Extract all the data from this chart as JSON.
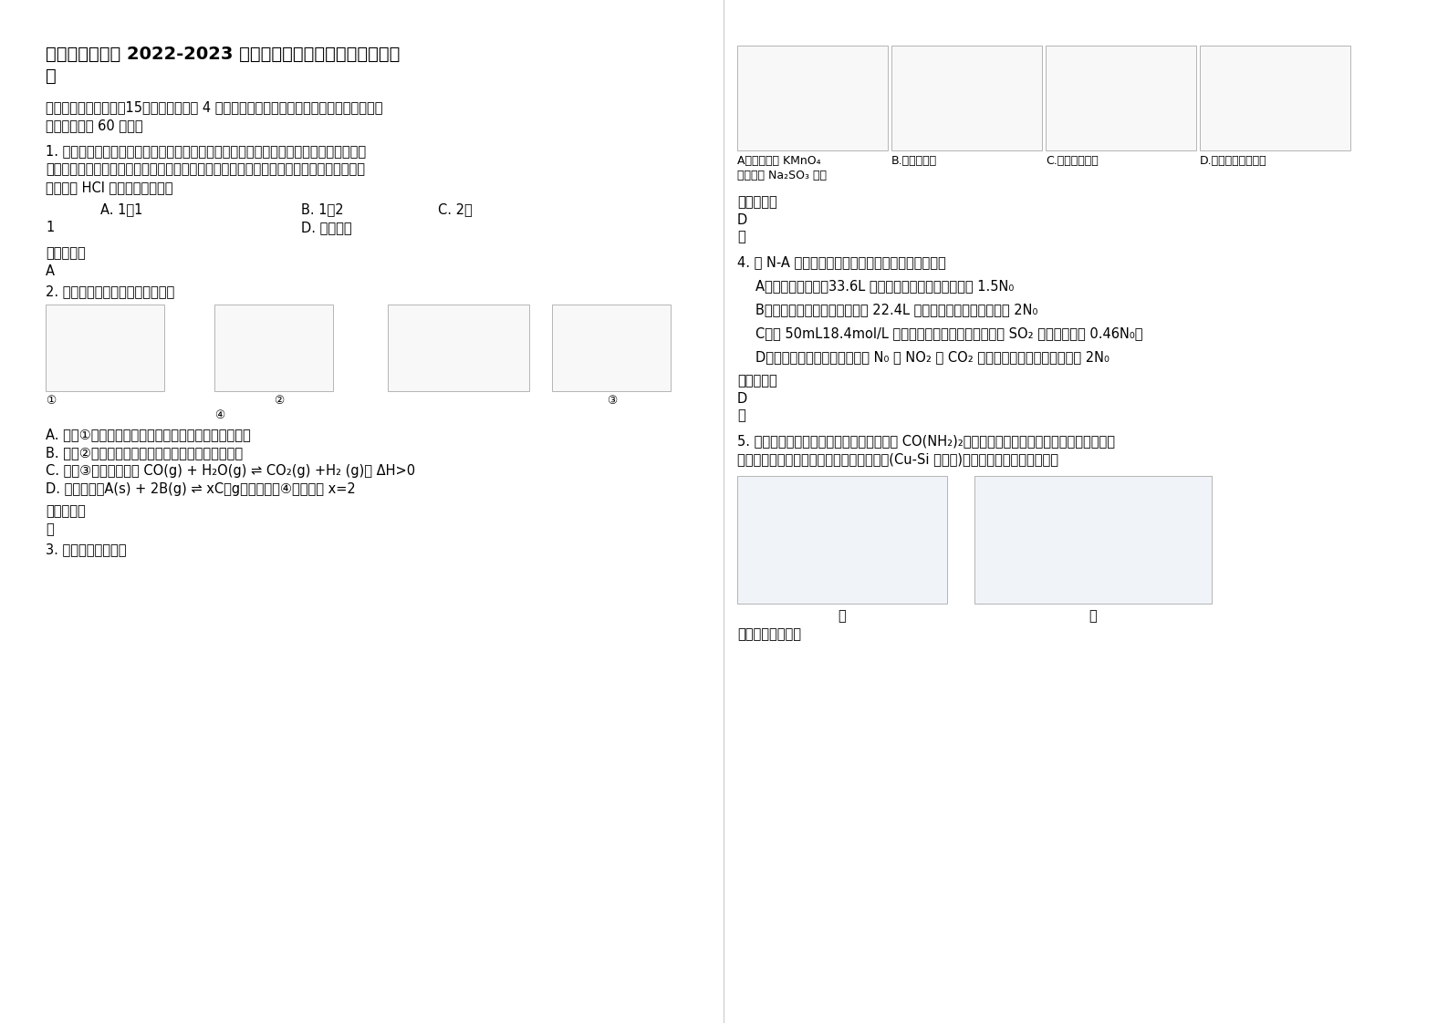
{
  "bg_color": "#ffffff",
  "title_line1": "重庆开县开中学 2022-2023 学年高三化学上学期期末试卷含解",
  "title_line2": "析",
  "section_header_line1": "一、单选题（本大题內15个小题，每小题 4 分。在每小题给出的四个选项中，只有一项符合",
  "section_header_line2": "题目要求，八 60 分。）",
  "q1_line1": "1. 在甲乙两个坑崛中分别盛等质量的碳酸氢钓；将甲充分加热，之后冷却至室温；乙不加",
  "q1_line2": "热。分别向甲、乙两坑崛中加入足量的相同物质的量浓度的盐酸，反应后甲、乙两坑崛中实",
  "q1_line3": "际消耗的 HCl 的物质的量之比为",
  "q1_optA": "A. 1：1",
  "q1_optB": "B. 1：2",
  "q1_optC": "C. 2：",
  "q1_optC2": "1",
  "q1_optD": "D. 无法确定",
  "ans_label": "参考答案：",
  "q1_ans": "A",
  "q2_text": "2. 关于下列图示的说法中正确的是",
  "q2_num1": "①",
  "q2_num2": "②",
  "q2_num3": "③",
  "q2_num4": "④",
  "q2_optA": "A. 　图①装置用于分离沸点相差较大的互溶液体混合物",
  "q2_optB": "B. 　图②装置用于研究不同催化剂对反应速率的影响",
  "q2_optC": "C. 　图③表示可逆反应 CO(g) + H₂O(g) ⇌ CO₂(g) +H₂ (g)； ΔH>0",
  "q2_optD": "D. 　对反应：A(s) + 2B(g) ⇌ xC（g）；根据图④可以求出 x=2",
  "q2_ans": "略",
  "q3_text": "3. 下列实验正确的是",
  "q3_imgA": "A．　用酸性 KMnO₄",
  "q3_imgA2": "溶液滴定 Na₂SO₃ 溶液",
  "q3_imgB": "B.配制稀硫酸",
  "q3_imgC": "C.海带灯烧成灰",
  "q3_imgD": "D.探究氯碱工业原理",
  "q3_ans": "D",
  "q3_ans2": "略",
  "q4_text": "4. 设 N-A 为阿伏加德罗常数的値，下列叙述正确的是",
  "q4_optA": "A．　标准状况下，33.6L 氯化氯中含有氟原子的数目为 1.5N₀",
  "q4_optB": "B．　常温常压下，足量的镇与 22.4L 氯气反应，转移的电子数为 2N₀",
  "q4_optC": "C．　 50mL18.4mol/L 浓确酸与足量铜微热反应，生成 SO₂ 分子的数目为 0.46N₀。",
  "q4_optD": "D．　常温常压下，分子总数为 N₀ 的 NO₂ 和 CO₂ 混合气体中含有的氧原子数为 2N₀",
  "q4_ans": "D",
  "q4_ans2": "略",
  "q5_line1": "5. 甲是一种在微生物作用下将废水中的尿素 CO(NH₂)₂转化为环境友好物质，实现化学能转化为能",
  "q5_line2": "的装置，利用甲、乙两装置，实现对沶金属(Cu-Si 作硅源)进行电解精炼制备高纯硅。",
  "q5_jia": "甲",
  "q5_yi": "乙",
  "q5_caption": "下列说法正确的是"
}
